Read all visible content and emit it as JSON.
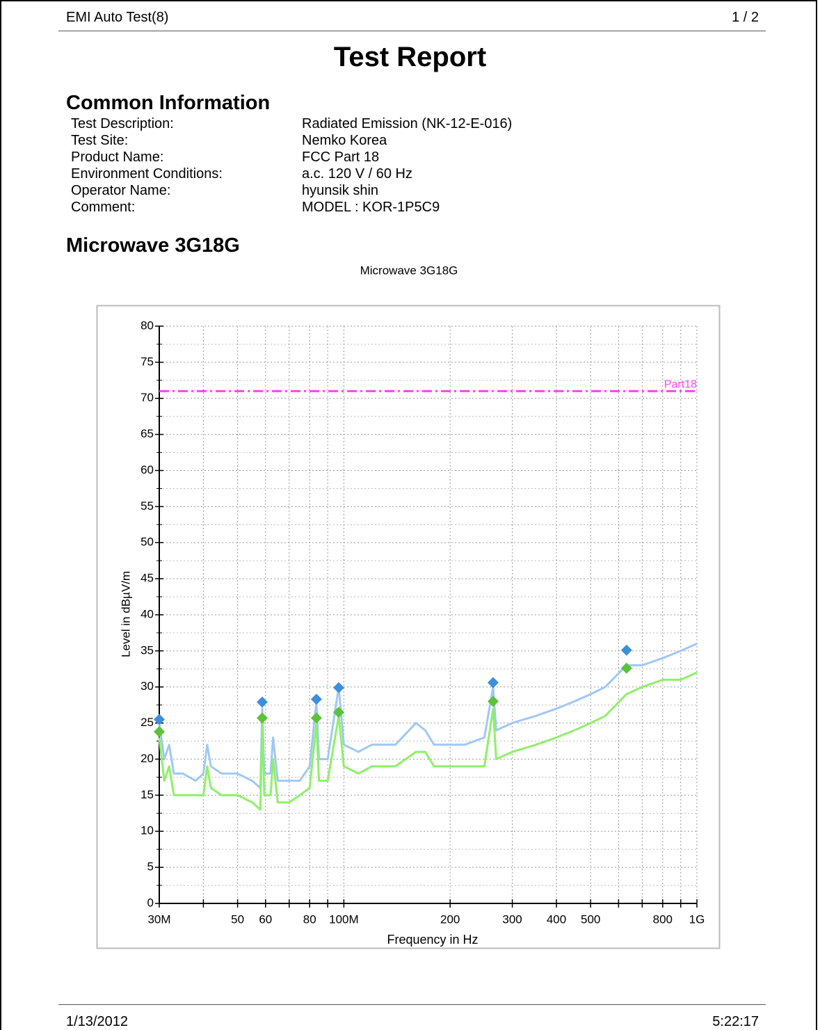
{
  "header": {
    "left": "EMI Auto Test(8)",
    "right": "1 / 2"
  },
  "title": "Test Report",
  "info": {
    "heading": "Common Information",
    "rows": [
      [
        "Test Description:",
        "Radiated Emission (NK-12-E-016)"
      ],
      [
        "Test Site:",
        "Nemko Korea"
      ],
      [
        "Product Name:",
        "FCC Part 18"
      ],
      [
        "Environment Conditions:",
        "a.c. 120 V / 60 Hz"
      ],
      [
        "Operator Name:",
        "hyunsik shin"
      ],
      [
        "Comment:",
        "MODEL : KOR-1P5C9"
      ]
    ]
  },
  "section": "Microwave 3G18G",
  "chart_data": {
    "type": "line",
    "title": "Microwave 3G18G",
    "x_label": "Frequency in Hz",
    "y_label": "Level in dBµV/m",
    "log_x": true,
    "grid": true,
    "xlim": [
      30000000.0,
      1000000000.0
    ],
    "ylim": [
      0,
      80
    ],
    "xticks": [
      {
        "value": 30000000.0,
        "label": "30M"
      },
      {
        "value": 50000000.0,
        "label": "50"
      },
      {
        "value": 60000000.0,
        "label": "60"
      },
      {
        "value": 80000000.0,
        "label": "80"
      },
      {
        "value": 100000000.0,
        "label": "100M"
      },
      {
        "value": 200000000.0,
        "label": "200"
      },
      {
        "value": 300000000.0,
        "label": "300"
      },
      {
        "value": 400000000.0,
        "label": "400"
      },
      {
        "value": 500000000.0,
        "label": "500"
      },
      {
        "value": 800000000.0,
        "label": "800"
      },
      {
        "value": 1000000000.0,
        "label": "1G"
      }
    ],
    "x_minor_ticks": [
      40000000.0,
      70000000.0,
      90000000.0,
      600000000.0,
      700000000.0,
      900000000.0
    ],
    "yticks": [
      0,
      5,
      10,
      15,
      20,
      25,
      30,
      35,
      40,
      45,
      50,
      55,
      60,
      65,
      70,
      75,
      80
    ],
    "limit": {
      "name": "Part18",
      "value": 71,
      "color": "#ff44ee"
    },
    "series": [
      {
        "color": "#a0c8f4",
        "x": [
          30000000.0,
          31000000.0,
          32000000.0,
          33000000.0,
          35000000.0,
          38000000.0,
          40000000.0,
          41000000.0,
          42000000.0,
          45000000.0,
          50000000.0,
          55000000.0,
          58000000.0,
          58700000.0,
          59500000.0,
          62000000.0,
          63000000.0,
          65000000.0,
          70000000.0,
          75000000.0,
          80000000.0,
          83600000.0,
          85000000.0,
          90000000.0,
          96700000.0,
          100000000.0,
          110000000.0,
          120000000.0,
          140000000.0,
          160000000.0,
          170000000.0,
          180000000.0,
          200000000.0,
          220000000.0,
          250000000.0,
          264700000.0,
          270000000.0,
          300000000.0,
          350000000.0,
          400000000.0,
          450000000.0,
          500000000.0,
          550000000.0,
          632000000.0,
          700000000.0,
          800000000.0,
          900000000.0,
          1000000000.0
        ],
        "values": [
          25,
          20,
          22,
          18,
          18,
          17,
          18,
          22,
          19,
          18,
          18,
          17,
          16,
          27,
          18,
          18,
          23,
          17,
          17,
          17,
          19,
          28,
          20,
          20,
          30,
          22,
          21,
          22,
          22,
          25,
          24,
          22,
          22,
          22,
          23,
          30,
          24,
          25,
          26,
          27,
          28,
          29,
          30,
          33,
          33,
          34,
          35,
          36
        ]
      },
      {
        "color": "#8ef06a",
        "x": [
          30000000.0,
          31000000.0,
          32000000.0,
          33000000.0,
          35000000.0,
          38000000.0,
          40000000.0,
          41000000.0,
          42000000.0,
          45000000.0,
          50000000.0,
          55000000.0,
          58000000.0,
          58700000.0,
          59500000.0,
          62000000.0,
          63000000.0,
          65000000.0,
          70000000.0,
          75000000.0,
          80000000.0,
          83600000.0,
          85000000.0,
          90000000.0,
          96700000.0,
          100000000.0,
          110000000.0,
          120000000.0,
          140000000.0,
          160000000.0,
          170000000.0,
          180000000.0,
          200000000.0,
          220000000.0,
          250000000.0,
          264700000.0,
          270000000.0,
          300000000.0,
          350000000.0,
          400000000.0,
          450000000.0,
          500000000.0,
          550000000.0,
          632000000.0,
          700000000.0,
          800000000.0,
          900000000.0,
          1000000000.0
        ],
        "values": [
          23,
          17,
          19,
          15,
          15,
          15,
          15,
          19,
          16,
          15,
          15,
          14,
          13,
          25,
          15,
          15,
          20,
          14,
          14,
          15,
          16,
          25,
          17,
          17,
          26,
          19,
          18,
          19,
          19,
          21,
          21,
          19,
          19,
          19,
          19,
          27,
          20,
          21,
          22,
          23,
          24,
          25,
          26,
          29,
          30,
          31,
          31,
          32
        ]
      }
    ],
    "markers": [
      {
        "color": "#3b8fdc",
        "x": [
          30000000.0,
          58700000.0,
          83600000.0,
          96700000.0,
          264700000.0,
          632000000.0
        ],
        "values": [
          25.5,
          27.9,
          28.3,
          29.9,
          30.6,
          35.1
        ]
      },
      {
        "color": "#5cc23a",
        "x": [
          30000000.0,
          58700000.0,
          83600000.0,
          96700000.0,
          264700000.0,
          632000000.0
        ],
        "values": [
          23.8,
          25.7,
          25.7,
          26.5,
          28.0,
          32.6
        ]
      }
    ]
  },
  "footer": {
    "left": "1/13/2012",
    "right": "5:22:17"
  }
}
